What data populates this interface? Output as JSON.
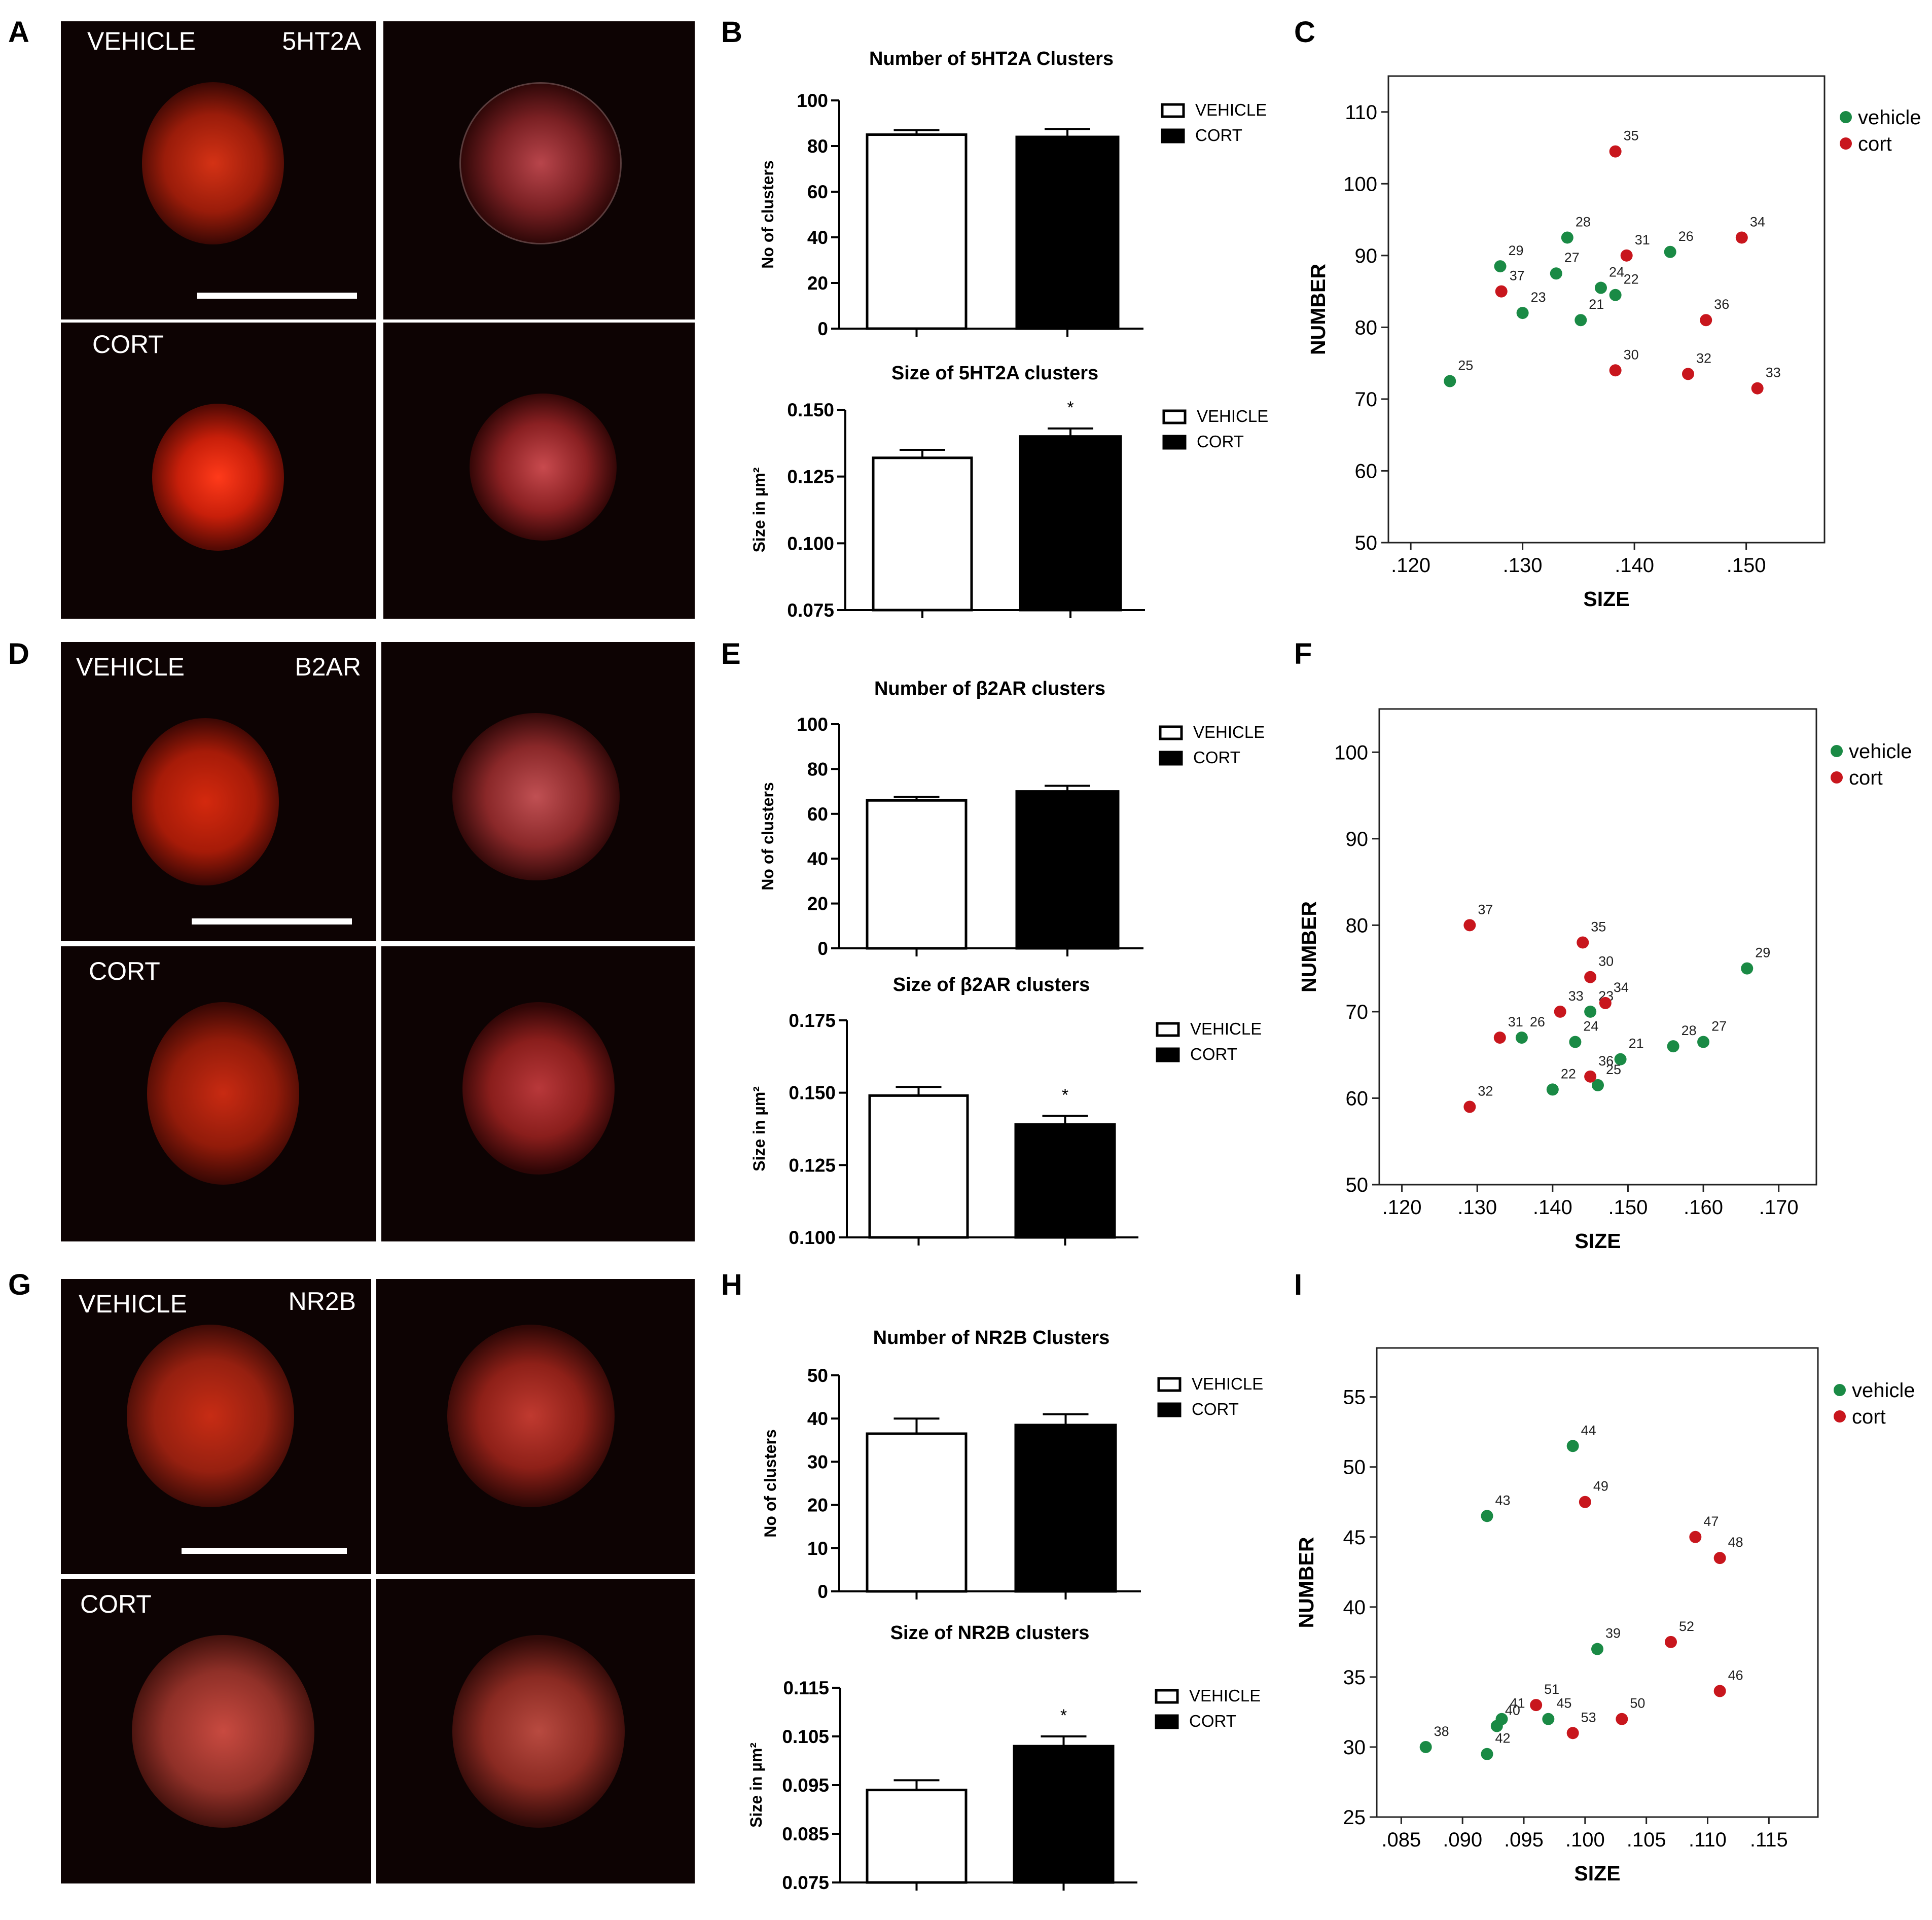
{
  "panel_labels": [
    "A",
    "B",
    "C",
    "D",
    "E",
    "F",
    "G",
    "H",
    "I"
  ],
  "micrographs": {
    "a_tl": {
      "left": "VEHICLE",
      "right": "5HT2A"
    },
    "a_bl": {
      "left": "CORT"
    },
    "d_tl": {
      "left": "VEHICLE",
      "right": "B2AR"
    },
    "d_bl": {
      "left": "CORT"
    },
    "g_tl": {
      "left": "VEHICLE",
      "right": "NR2B"
    },
    "g_bl": {
      "left": "CORT"
    }
  },
  "legend_bar": [
    "VEHICLE",
    "CORT"
  ],
  "legend_scatter": [
    "vehicle",
    "cort"
  ],
  "colors": {
    "vehicle": "#1a8a45",
    "cort": "#c8161d",
    "bar_vehicle": "#ffffff",
    "bar_cort": "#000000"
  },
  "chart_data": [
    {
      "id": "B_num",
      "type": "bar",
      "title": "Number of 5HT2A Clusters",
      "ylabel": "No of clusters",
      "categories": [
        "VEHICLE",
        "CORT"
      ],
      "values": [
        85,
        84
      ],
      "errors": [
        2,
        3.5
      ],
      "ylim": [
        0,
        100
      ],
      "yticks": [
        "0",
        "20",
        "40",
        "60",
        "80",
        "100"
      ],
      "sig": ""
    },
    {
      "id": "B_size",
      "type": "bar",
      "title": "Size of 5HT2A clusters",
      "ylabel": "Size in µm²",
      "categories": [
        "VEHICLE",
        "CORT"
      ],
      "values": [
        0.132,
        0.14
      ],
      "errors": [
        0.003,
        0.003
      ],
      "ylim": [
        0.075,
        0.15
      ],
      "yticks": [
        "0.075",
        "0.100",
        "0.125",
        "0.150"
      ],
      "sig": "*"
    },
    {
      "id": "E_num",
      "type": "bar",
      "title": "Number of β2AR clusters",
      "ylabel": "No of clusters",
      "categories": [
        "VEHICLE",
        "CORT"
      ],
      "values": [
        66,
        70
      ],
      "errors": [
        1.5,
        2.5
      ],
      "ylim": [
        0,
        100
      ],
      "yticks": [
        "0",
        "20",
        "40",
        "60",
        "80",
        "100"
      ],
      "sig": ""
    },
    {
      "id": "E_size",
      "type": "bar",
      "title": "Size of β2AR clusters",
      "ylabel": "Size in µm²",
      "categories": [
        "VEHICLE",
        "CORT"
      ],
      "values": [
        0.149,
        0.139
      ],
      "errors": [
        0.003,
        0.003
      ],
      "ylim": [
        0.1,
        0.175
      ],
      "yticks": [
        "0.100",
        "0.125",
        "0.150",
        "0.175"
      ],
      "sig": "*"
    },
    {
      "id": "H_num",
      "type": "bar",
      "title": "Number of NR2B Clusters",
      "ylabel": "No of clusters",
      "categories": [
        "VEHICLE",
        "CORT"
      ],
      "values": [
        36.5,
        38.5
      ],
      "errors": [
        3.5,
        2.5
      ],
      "ylim": [
        0,
        50
      ],
      "yticks": [
        "0",
        "10",
        "20",
        "30",
        "40",
        "50"
      ],
      "sig": ""
    },
    {
      "id": "H_size",
      "type": "bar",
      "title": "Size of NR2B clusters",
      "ylabel": "Size in µm²",
      "categories": [
        "VEHICLE",
        "CORT"
      ],
      "values": [
        0.094,
        0.103
      ],
      "errors": [
        0.002,
        0.002
      ],
      "ylim": [
        0.075,
        0.115
      ],
      "yticks": [
        "0.075",
        "0.085",
        "0.095",
        "0.105",
        "0.115"
      ],
      "sig": "*"
    },
    {
      "id": "C",
      "type": "scatter",
      "xlabel": "SIZE",
      "ylabel": "NUMBER",
      "xlim": [
        0.118,
        0.157
      ],
      "ylim": [
        50,
        115
      ],
      "xticks": [
        0.12,
        0.13,
        0.14,
        0.15
      ],
      "xticklabels": [
        ".120",
        ".130",
        ".140",
        ".150"
      ],
      "yticks": [
        50,
        60,
        70,
        80,
        90,
        100,
        110
      ],
      "yticklabels": [
        "50",
        "60",
        "70",
        "80",
        "90",
        "100",
        "110"
      ],
      "series": [
        {
          "name": "vehicle",
          "points": [
            {
              "x": 0.1235,
              "y": 72.5,
              "label": "25"
            },
            {
              "x": 0.13,
              "y": 82,
              "label": "23"
            },
            {
              "x": 0.128,
              "y": 88.5,
              "label": "29"
            },
            {
              "x": 0.133,
              "y": 87.5,
              "label": "27"
            },
            {
              "x": 0.134,
              "y": 92.5,
              "label": "28"
            },
            {
              "x": 0.1352,
              "y": 81,
              "label": "21"
            },
            {
              "x": 0.137,
              "y": 85.5,
              "label": "24"
            },
            {
              "x": 0.1383,
              "y": 84.5,
              "label": "22"
            },
            {
              "x": 0.1432,
              "y": 90.5,
              "label": "26"
            }
          ]
        },
        {
          "name": "cort",
          "points": [
            {
              "x": 0.1281,
              "y": 85,
              "label": "37"
            },
            {
              "x": 0.1383,
              "y": 104.5,
              "label": "35"
            },
            {
              "x": 0.1393,
              "y": 90,
              "label": "31"
            },
            {
              "x": 0.1383,
              "y": 74,
              "label": "30"
            },
            {
              "x": 0.1496,
              "y": 92.5,
              "label": "34"
            },
            {
              "x": 0.1464,
              "y": 81,
              "label": "36"
            },
            {
              "x": 0.1448,
              "y": 73.5,
              "label": "32"
            },
            {
              "x": 0.151,
              "y": 71.5,
              "label": "33"
            }
          ]
        }
      ]
    },
    {
      "id": "F",
      "type": "scatter",
      "xlabel": "SIZE",
      "ylabel": "NUMBER",
      "xlim": [
        0.117,
        0.175
      ],
      "ylim": [
        50,
        105
      ],
      "xticks": [
        0.12,
        0.13,
        0.14,
        0.15,
        0.16,
        0.17
      ],
      "xticklabels": [
        ".120",
        ".130",
        ".140",
        ".150",
        ".160",
        ".170"
      ],
      "yticks": [
        50,
        60,
        70,
        80,
        90,
        100
      ],
      "yticklabels": [
        "50",
        "60",
        "70",
        "80",
        "90",
        "100"
      ],
      "series": [
        {
          "name": "vehicle",
          "points": [
            {
              "x": 0.1658,
              "y": 75,
              "label": "29"
            },
            {
              "x": 0.1359,
              "y": 67,
              "label": "26"
            },
            {
              "x": 0.145,
              "y": 70,
              "label": "23"
            },
            {
              "x": 0.143,
              "y": 66.5,
              "label": "24"
            },
            {
              "x": 0.149,
              "y": 64.5,
              "label": "21"
            },
            {
              "x": 0.14,
              "y": 61,
              "label": "22"
            },
            {
              "x": 0.146,
              "y": 61.5,
              "label": "25"
            },
            {
              "x": 0.156,
              "y": 66,
              "label": "28"
            },
            {
              "x": 0.16,
              "y": 66.5,
              "label": "27"
            }
          ]
        },
        {
          "name": "cort",
          "points": [
            {
              "x": 0.129,
              "y": 80,
              "label": "37"
            },
            {
              "x": 0.144,
              "y": 78,
              "label": "35"
            },
            {
              "x": 0.145,
              "y": 74,
              "label": "30"
            },
            {
              "x": 0.141,
              "y": 70,
              "label": "33"
            },
            {
              "x": 0.147,
              "y": 71,
              "label": "34"
            },
            {
              "x": 0.133,
              "y": 67,
              "label": "31"
            },
            {
              "x": 0.145,
              "y": 62.5,
              "label": "36"
            },
            {
              "x": 0.129,
              "y": 59,
              "label": "32"
            }
          ]
        }
      ]
    },
    {
      "id": "I",
      "type": "scatter",
      "xlabel": "SIZE",
      "ylabel": "NUMBER",
      "xlim": [
        0.083,
        0.119
      ],
      "ylim": [
        25,
        58.5
      ],
      "xticks": [
        0.085,
        0.09,
        0.095,
        0.1,
        0.105,
        0.11,
        0.115
      ],
      "xticklabels": [
        ".085",
        ".090",
        ".095",
        ".100",
        ".105",
        ".110",
        ".115"
      ],
      "yticks": [
        25,
        30,
        35,
        40,
        45,
        50,
        55
      ],
      "yticklabels": [
        "25",
        "30",
        "35",
        "40",
        "45",
        "50",
        "55"
      ],
      "series": [
        {
          "name": "vehicle",
          "points": [
            {
              "x": 0.099,
              "y": 51.5,
              "label": "44"
            },
            {
              "x": 0.092,
              "y": 46.5,
              "label": "43"
            },
            {
              "x": 0.101,
              "y": 37,
              "label": "39"
            },
            {
              "x": 0.087,
              "y": 30,
              "label": "38"
            },
            {
              "x": 0.0928,
              "y": 31.5,
              "label": "40"
            },
            {
              "x": 0.0932,
              "y": 32,
              "label": "41"
            },
            {
              "x": 0.092,
              "y": 29.5,
              "label": "42"
            },
            {
              "x": 0.097,
              "y": 32,
              "label": "45"
            }
          ]
        },
        {
          "name": "cort",
          "points": [
            {
              "x": 0.1,
              "y": 47.5,
              "label": "49"
            },
            {
              "x": 0.109,
              "y": 45,
              "label": "47"
            },
            {
              "x": 0.111,
              "y": 43.5,
              "label": "48"
            },
            {
              "x": 0.107,
              "y": 37.5,
              "label": "52"
            },
            {
              "x": 0.111,
              "y": 34,
              "label": "46"
            },
            {
              "x": 0.096,
              "y": 33,
              "label": "51"
            },
            {
              "x": 0.103,
              "y": 32,
              "label": "50"
            },
            {
              "x": 0.099,
              "y": 31,
              "label": "53"
            }
          ]
        }
      ]
    }
  ]
}
